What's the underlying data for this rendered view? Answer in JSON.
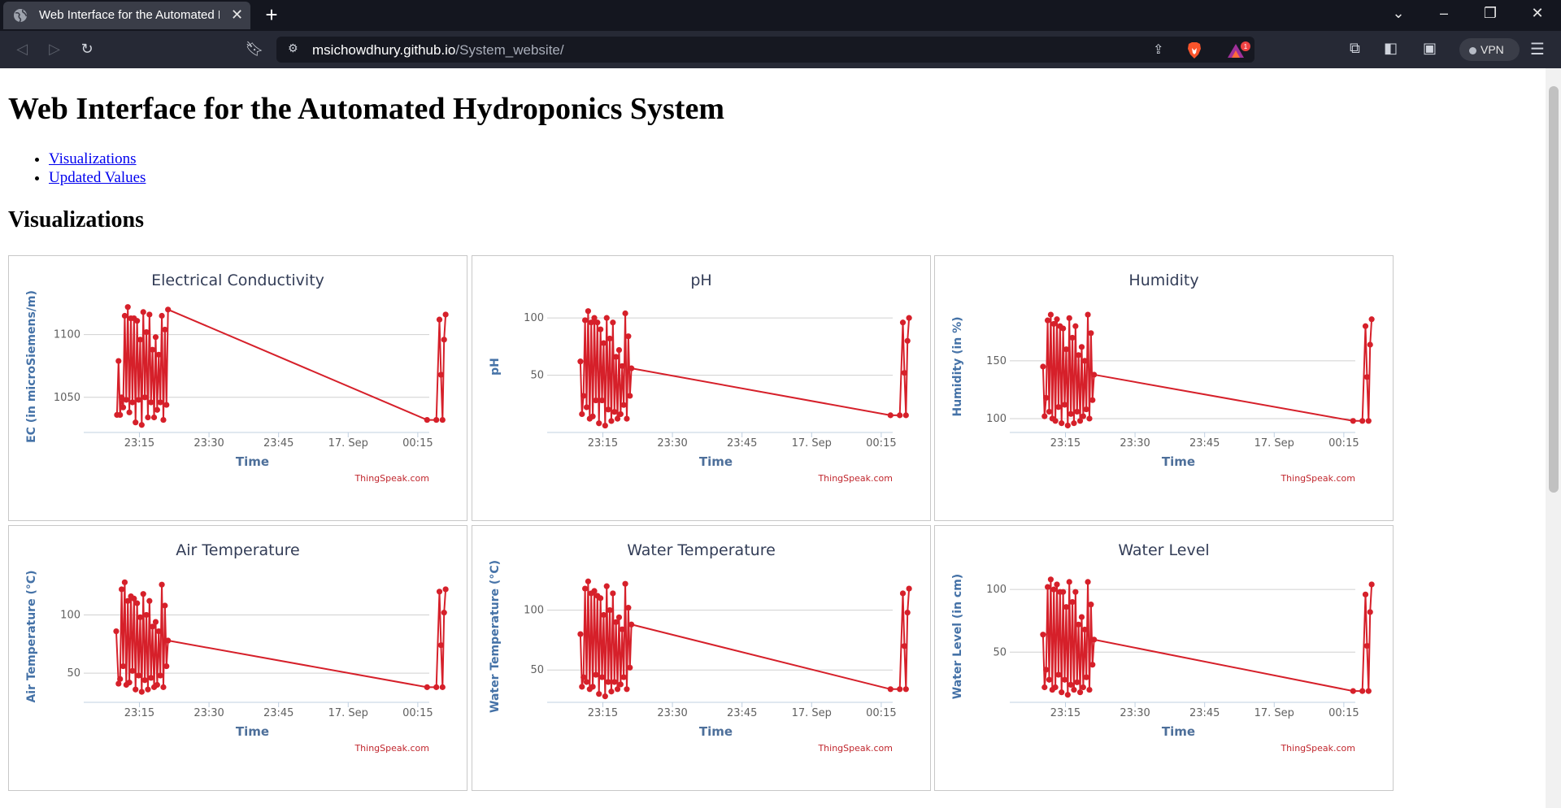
{
  "browser": {
    "tab_title": "Web Interface for the Automated Hydroponics System",
    "url_host": "msichowdhury.github.io",
    "url_path": "/System_website/",
    "vpn_label": "VPN",
    "brave_badge": "1"
  },
  "page": {
    "title": "Web Interface for the Automated Hydroponics System",
    "nav_links": [
      "Visualizations",
      "Updated Values"
    ],
    "section_heading": "Visualizations"
  },
  "colors": {
    "series": "#d6202a",
    "link": "#0000ee",
    "credit": "#c0262d"
  },
  "chart_data": [
    {
      "type": "line",
      "title": "Electrical Conductivity",
      "xlabel": "Time",
      "ylabel": "EC (in microSiemens/m)",
      "x_tick_labels": [
        "23:15",
        "23:30",
        "23:45",
        "17. Sep",
        "00:15"
      ],
      "y_tick_labels": [
        "1050",
        "1100"
      ],
      "y_ticks": [
        1050,
        1100
      ],
      "ylim": [
        1022,
        1127
      ],
      "grid": true,
      "credit": "ThingSpeak.com",
      "series": [
        {
          "x": [
            "23:10:10",
            "23:10:30",
            "23:10:50",
            "23:11:10",
            "23:11:30",
            "23:11:50",
            "23:12:10",
            "23:12:30",
            "23:12:50",
            "23:13:10",
            "23:13:30",
            "23:13:50",
            "23:14:10",
            "23:14:30",
            "23:14:50",
            "23:15:10",
            "23:15:30",
            "23:15:50",
            "23:16:10",
            "23:16:30",
            "23:16:50",
            "23:17:10",
            "23:17:30",
            "23:17:50",
            "23:18:10",
            "23:18:30",
            "23:18:50",
            "23:19:10",
            "23:19:30",
            "23:19:50",
            "23:20:10",
            "23:20:30",
            "23:20:50",
            "23:21:10",
            "00:17:00",
            "00:19:00",
            "00:19:40",
            "00:20:00",
            "00:20:20",
            "00:20:40",
            "00:21:00"
          ],
          "values": [
            1036,
            1079,
            1036,
            1050,
            1042,
            1115,
            1048,
            1122,
            1038,
            1113,
            1046,
            1113,
            1030,
            1111,
            1048,
            1096,
            1028,
            1118,
            1050,
            1102,
            1034,
            1116,
            1046,
            1088,
            1034,
            1098,
            1040,
            1084,
            1046,
            1115,
            1032,
            1104,
            1044,
            1120,
            1032,
            1032,
            1112,
            1068,
            1032,
            1096,
            1116
          ]
        }
      ]
    },
    {
      "type": "line",
      "title": "pH",
      "xlabel": "Time",
      "ylabel": "pH",
      "x_tick_labels": [
        "23:15",
        "23:30",
        "23:45",
        "17. Sep",
        "00:15"
      ],
      "y_tick_labels": [
        "50",
        "100"
      ],
      "y_ticks": [
        50,
        100
      ],
      "ylim": [
        0,
        115
      ],
      "grid": true,
      "credit": "ThingSpeak.com",
      "series": [
        {
          "x": [
            "23:10:10",
            "23:10:30",
            "23:10:50",
            "23:11:10",
            "23:11:30",
            "23:11:50",
            "23:12:10",
            "23:12:30",
            "23:12:50",
            "23:13:10",
            "23:13:30",
            "23:13:50",
            "23:14:10",
            "23:14:30",
            "23:14:50",
            "23:15:10",
            "23:15:30",
            "23:15:50",
            "23:16:10",
            "23:16:30",
            "23:16:50",
            "23:17:10",
            "23:17:30",
            "23:17:50",
            "23:18:10",
            "23:18:30",
            "23:18:50",
            "23:19:10",
            "23:19:30",
            "23:19:50",
            "23:20:10",
            "23:20:30",
            "23:20:50",
            "23:21:10",
            "00:17:00",
            "00:19:00",
            "00:19:40",
            "00:20:00",
            "00:20:20",
            "00:20:40",
            "00:21:00"
          ],
          "values": [
            62,
            16,
            32,
            98,
            22,
            106,
            12,
            96,
            14,
            100,
            28,
            96,
            8,
            90,
            28,
            78,
            6,
            100,
            20,
            82,
            10,
            96,
            18,
            66,
            12,
            72,
            16,
            58,
            24,
            104,
            12,
            84,
            32,
            56,
            15,
            15,
            96,
            52,
            15,
            80,
            100
          ]
        }
      ]
    },
    {
      "type": "line",
      "title": "Humidity",
      "xlabel": "Time",
      "ylabel": "Humidity (in %)",
      "x_tick_labels": [
        "23:15",
        "23:30",
        "23:45",
        "17. Sep",
        "00:15"
      ],
      "y_tick_labels": [
        "100",
        "150"
      ],
      "y_ticks": [
        100,
        150
      ],
      "ylim": [
        88,
        202
      ],
      "grid": true,
      "credit": "ThingSpeak.com",
      "series": [
        {
          "x": [
            "23:10:10",
            "23:10:30",
            "23:10:50",
            "23:11:10",
            "23:11:30",
            "23:11:50",
            "23:12:10",
            "23:12:30",
            "23:12:50",
            "23:13:10",
            "23:13:30",
            "23:13:50",
            "23:14:10",
            "23:14:30",
            "23:14:50",
            "23:15:10",
            "23:15:30",
            "23:15:50",
            "23:16:10",
            "23:16:30",
            "23:16:50",
            "23:17:10",
            "23:17:30",
            "23:17:50",
            "23:18:10",
            "23:18:30",
            "23:18:50",
            "23:19:10",
            "23:19:30",
            "23:19:50",
            "23:20:10",
            "23:20:30",
            "23:20:50",
            "23:21:10",
            "00:17:00",
            "00:19:00",
            "00:19:40",
            "00:20:00",
            "00:20:20",
            "00:20:40",
            "00:21:00"
          ],
          "values": [
            145,
            102,
            118,
            185,
            106,
            190,
            100,
            182,
            98,
            186,
            110,
            180,
            96,
            178,
            112,
            160,
            94,
            187,
            104,
            170,
            96,
            180,
            106,
            155,
            98,
            162,
            102,
            150,
            108,
            190,
            100,
            174,
            116,
            138,
            98,
            98,
            180,
            136,
            98,
            164,
            186
          ]
        }
      ]
    },
    {
      "type": "line",
      "title": "Air Temperature",
      "xlabel": "Time",
      "ylabel": "Air Temperature (°C)",
      "x_tick_labels": [
        "23:15",
        "23:30",
        "23:45",
        "17. Sep",
        "00:15"
      ],
      "y_tick_labels": [
        "50",
        "100"
      ],
      "y_ticks": [
        50,
        100
      ],
      "ylim": [
        25,
        138
      ],
      "grid": true,
      "credit": "ThingSpeak.com",
      "series": [
        {
          "x": [
            "23:10:00",
            "23:10:30",
            "23:10:50",
            "23:11:10",
            "23:11:30",
            "23:11:50",
            "23:12:10",
            "23:12:30",
            "23:12:50",
            "23:13:10",
            "23:13:30",
            "23:13:50",
            "23:14:10",
            "23:14:30",
            "23:14:50",
            "23:15:10",
            "23:15:30",
            "23:15:50",
            "23:16:10",
            "23:16:30",
            "23:16:50",
            "23:17:10",
            "23:17:30",
            "23:17:50",
            "23:18:10",
            "23:18:30",
            "23:18:50",
            "23:19:10",
            "23:19:30",
            "23:19:50",
            "23:20:10",
            "23:20:30",
            "23:20:50",
            "23:21:10",
            "00:17:00",
            "00:19:00",
            "00:19:40",
            "00:20:00",
            "00:20:20",
            "00:20:40",
            "00:21:00"
          ],
          "values": [
            86,
            41,
            45,
            122,
            56,
            128,
            40,
            112,
            42,
            116,
            52,
            114,
            36,
            110,
            48,
            98,
            34,
            118,
            44,
            100,
            36,
            112,
            46,
            90,
            38,
            94,
            40,
            86,
            48,
            126,
            38,
            108,
            56,
            78,
            38,
            38,
            120,
            74,
            38,
            102,
            122
          ]
        }
      ]
    },
    {
      "type": "line",
      "title": "Water Temperature",
      "xlabel": "Time",
      "ylabel": "Water Temperature (°C)",
      "x_tick_labels": [
        "23:15",
        "23:30",
        "23:45",
        "17. Sep",
        "00:15"
      ],
      "y_tick_labels": [
        "50",
        "100"
      ],
      "y_ticks": [
        50,
        100
      ],
      "ylim": [
        23,
        133
      ],
      "grid": true,
      "credit": "ThingSpeak.com",
      "series": [
        {
          "x": [
            "23:10:10",
            "23:10:30",
            "23:10:50",
            "23:11:10",
            "23:11:30",
            "23:11:50",
            "23:12:10",
            "23:12:30",
            "23:12:50",
            "23:13:10",
            "23:13:30",
            "23:13:50",
            "23:14:10",
            "23:14:30",
            "23:14:50",
            "23:15:10",
            "23:15:30",
            "23:15:50",
            "23:16:10",
            "23:16:30",
            "23:16:50",
            "23:17:10",
            "23:17:30",
            "23:17:50",
            "23:18:10",
            "23:18:30",
            "23:18:50",
            "23:19:10",
            "23:19:30",
            "23:19:50",
            "23:20:10",
            "23:20:30",
            "23:20:50",
            "23:21:10",
            "00:17:00",
            "00:19:00",
            "00:19:40",
            "00:20:00",
            "00:20:20",
            "00:20:40",
            "00:21:00"
          ],
          "values": [
            80,
            36,
            44,
            118,
            40,
            124,
            34,
            114,
            36,
            116,
            46,
            112,
            30,
            110,
            44,
            96,
            28,
            120,
            40,
            100,
            32,
            114,
            40,
            90,
            34,
            94,
            38,
            84,
            44,
            122,
            34,
            102,
            52,
            88,
            34,
            34,
            114,
            70,
            34,
            98,
            118
          ]
        }
      ]
    },
    {
      "type": "line",
      "title": "Water Level",
      "xlabel": "Time",
      "ylabel": "Water Level (in cm)",
      "x_tick_labels": [
        "23:15",
        "23:30",
        "23:45",
        "17. Sep",
        "00:15"
      ],
      "y_tick_labels": [
        "50",
        "100"
      ],
      "y_ticks": [
        50,
        100
      ],
      "ylim": [
        10,
        115
      ],
      "grid": true,
      "credit": "ThingSpeak.com",
      "series": [
        {
          "x": [
            "23:10:10",
            "23:10:30",
            "23:10:50",
            "23:11:10",
            "23:11:30",
            "23:11:50",
            "23:12:10",
            "23:12:30",
            "23:12:50",
            "23:13:10",
            "23:13:30",
            "23:13:50",
            "23:14:10",
            "23:14:30",
            "23:14:50",
            "23:15:10",
            "23:15:30",
            "23:15:50",
            "23:16:10",
            "23:16:30",
            "23:16:50",
            "23:17:10",
            "23:17:30",
            "23:17:50",
            "23:18:10",
            "23:18:30",
            "23:18:50",
            "23:19:10",
            "23:19:30",
            "23:19:50",
            "23:20:10",
            "23:20:30",
            "23:20:50",
            "23:21:10",
            "00:17:00",
            "00:19:00",
            "00:19:40",
            "00:20:00",
            "00:20:20",
            "00:20:40",
            "00:21:00"
          ],
          "values": [
            64,
            22,
            36,
            102,
            28,
            108,
            20,
            100,
            22,
            104,
            32,
            98,
            18,
            98,
            28,
            86,
            16,
            106,
            24,
            90,
            20,
            98,
            26,
            72,
            18,
            78,
            22,
            68,
            30,
            106,
            20,
            88,
            40,
            60,
            19,
            19,
            96,
            55,
            19,
            82,
            104
          ]
        }
      ]
    }
  ]
}
